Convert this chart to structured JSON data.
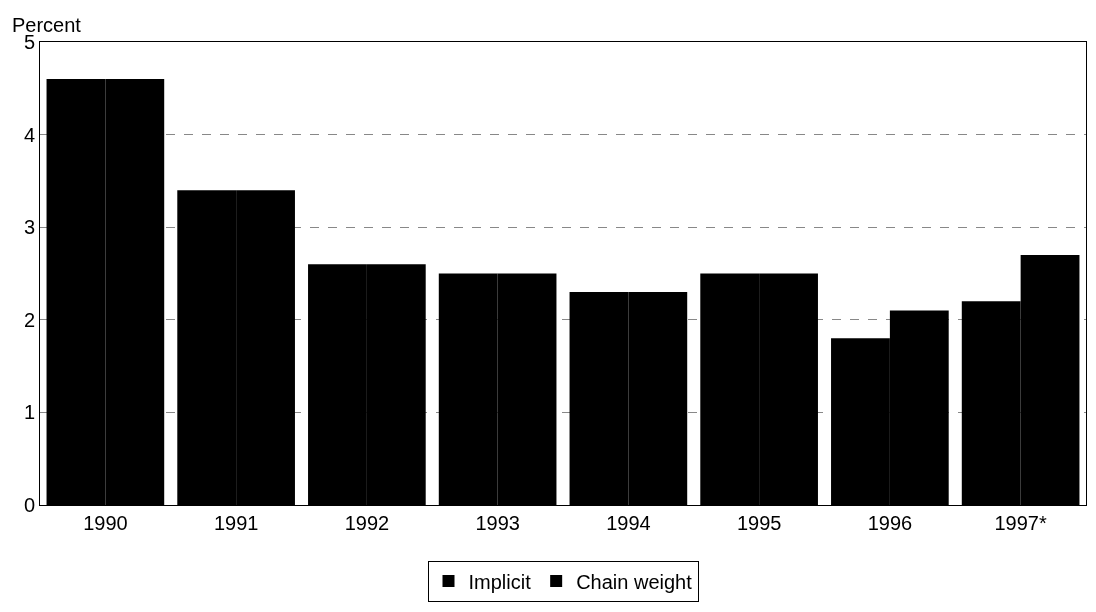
{
  "chart_data": {
    "type": "bar",
    "ylabel": "Percent",
    "categories": [
      "1990",
      "1991",
      "1992",
      "1993",
      "1994",
      "1995",
      "1996",
      "1997*"
    ],
    "series": [
      {
        "name": "Implicit",
        "color": "#000000",
        "values": [
          4.6,
          3.4,
          2.6,
          2.5,
          2.3,
          2.5,
          1.8,
          2.2
        ]
      },
      {
        "name": "Chain weight",
        "color": "#000000",
        "values": [
          4.6,
          3.4,
          2.6,
          2.5,
          2.3,
          2.5,
          2.1,
          2.7
        ]
      }
    ],
    "ylim": [
      0,
      5
    ],
    "yticks": [
      0,
      1,
      2,
      3,
      4,
      5
    ],
    "grid": "y",
    "legend": "bottom"
  }
}
